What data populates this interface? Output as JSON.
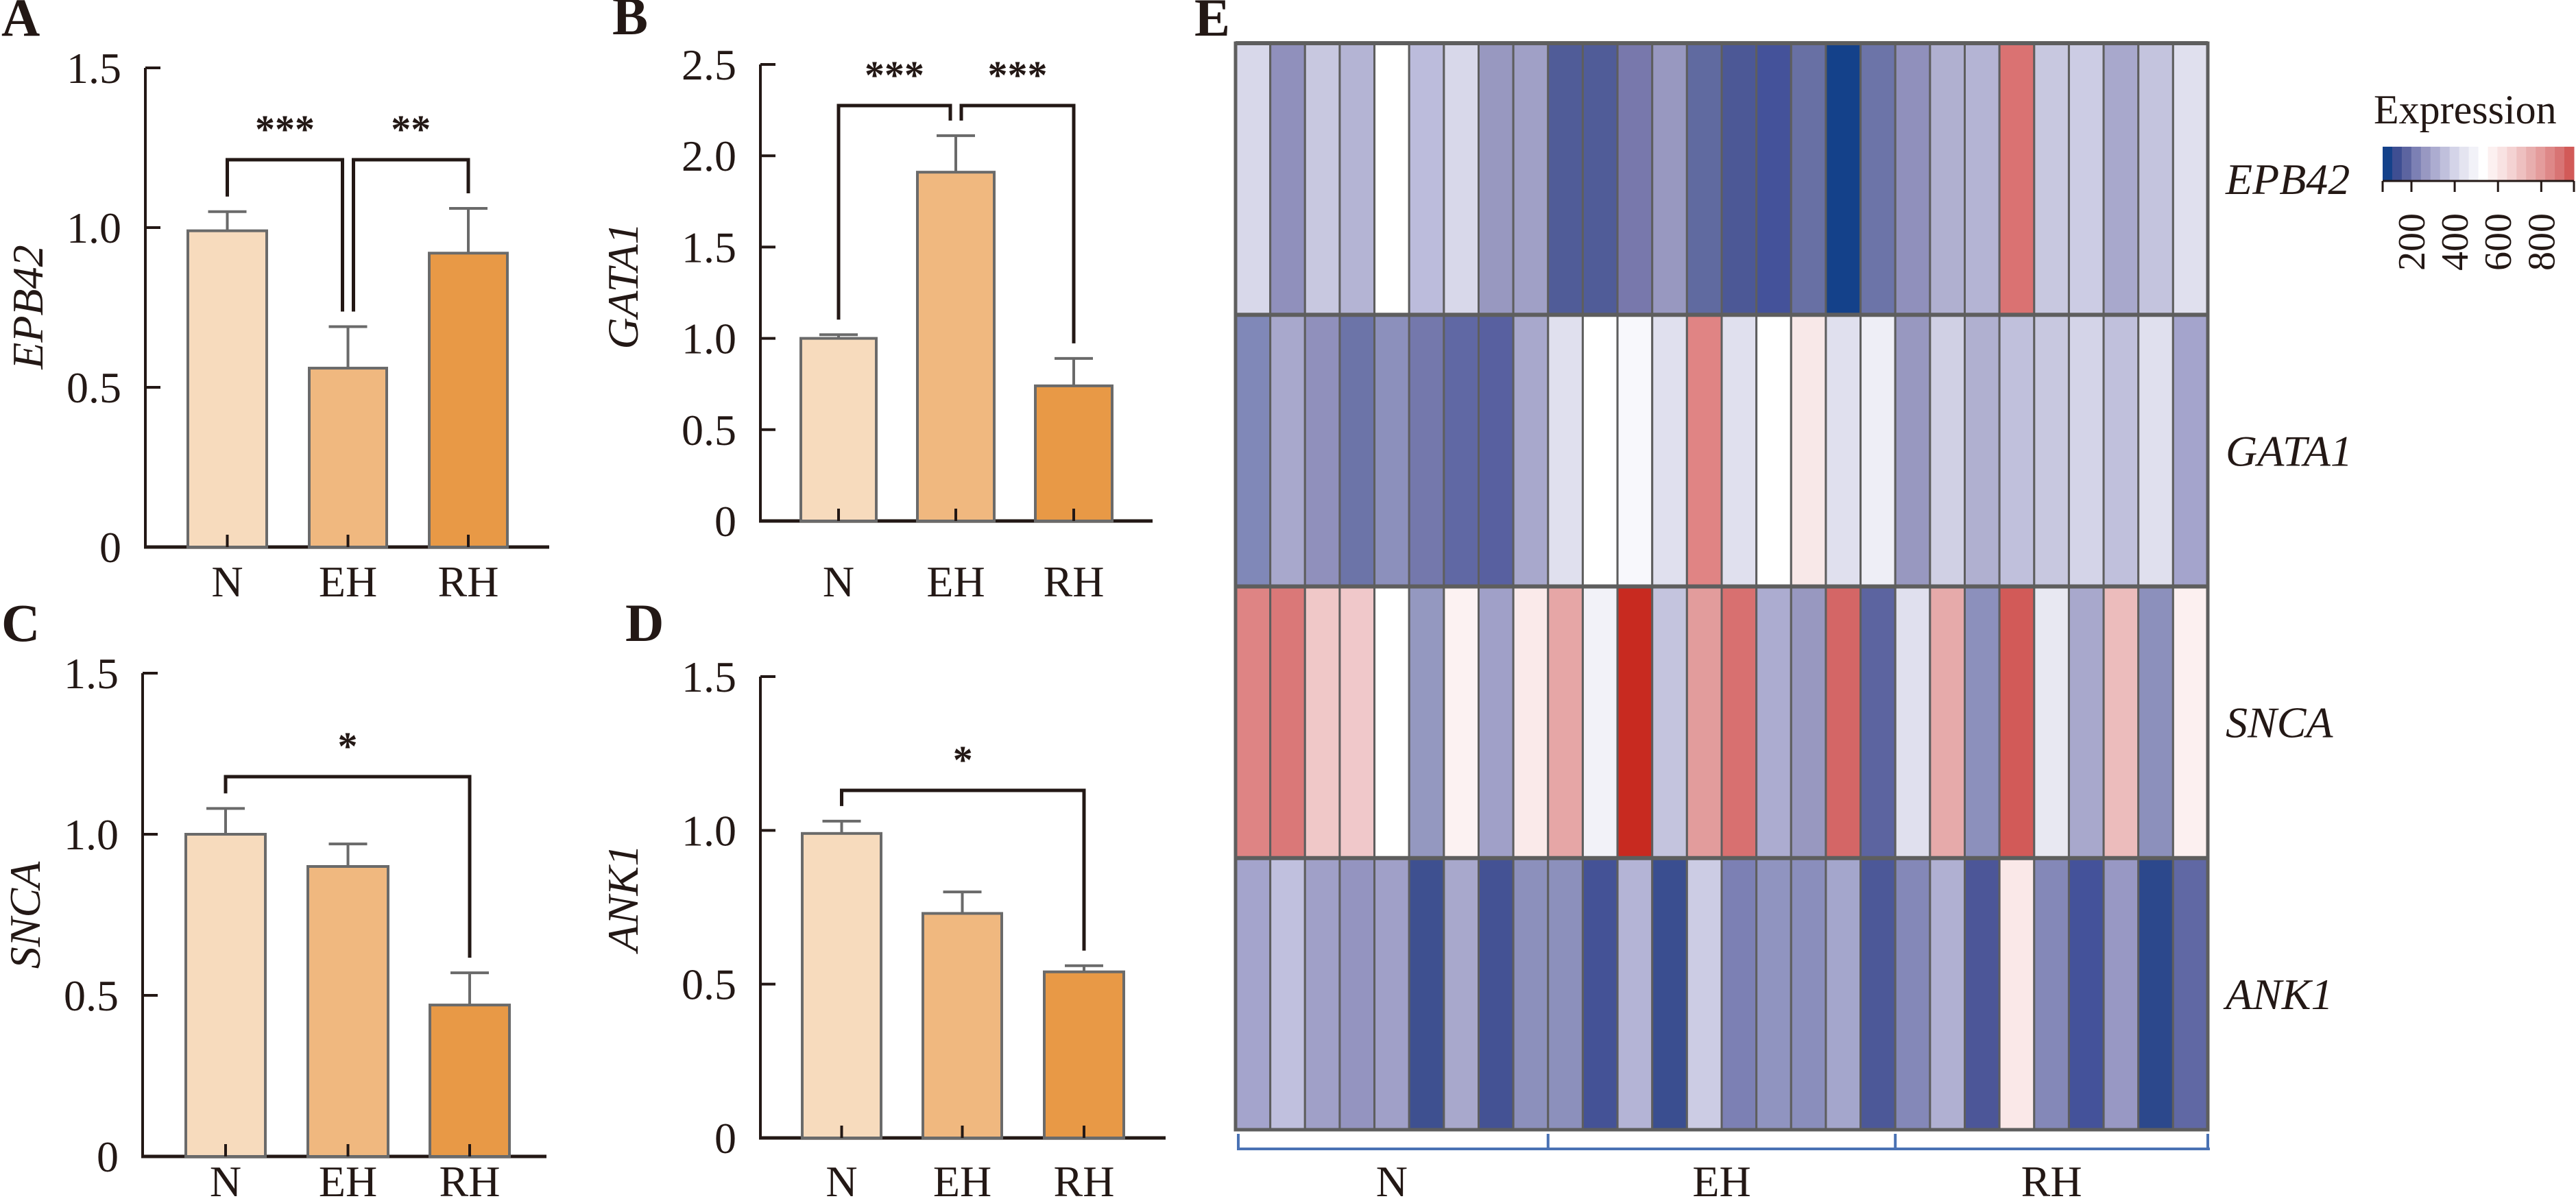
{
  "colors": {
    "bar_N": "#f7dbbd",
    "bar_EH": "#f0b87f",
    "bar_RH": "#e89946",
    "bar_edge": "#6a6a6a",
    "axis": "#231815",
    "heatmap_grid": "#5e5e5e",
    "bracket_blue": "#4a72b4"
  },
  "chart_data": [
    {
      "panel": "A",
      "type": "bar",
      "ylabel": "EPB42",
      "categories": [
        "N",
        "EH",
        "RH"
      ],
      "values": [
        0.99,
        0.56,
        0.92
      ],
      "error_upper": [
        1.05,
        0.69,
        1.06
      ],
      "ylim": [
        0,
        1.5
      ],
      "yticks": [
        "0",
        "0.5",
        "1.0",
        "1.5"
      ],
      "ytick_values": [
        0,
        0.5,
        1.0,
        1.5
      ],
      "significance": [
        {
          "from": "N",
          "to": "EH",
          "label": "***"
        },
        {
          "from": "EH",
          "to": "RH",
          "label": "**"
        }
      ]
    },
    {
      "panel": "B",
      "type": "bar",
      "ylabel": "GATA1",
      "categories": [
        "N",
        "EH",
        "RH"
      ],
      "values": [
        1.0,
        1.91,
        0.74
      ],
      "error_upper": [
        1.02,
        2.11,
        0.89
      ],
      "ylim": [
        0,
        2.5
      ],
      "yticks": [
        "0",
        "0.5",
        "1.0",
        "1.5",
        "2.0",
        "2.5"
      ],
      "ytick_values": [
        0,
        0.5,
        1.0,
        1.5,
        2.0,
        2.5
      ],
      "significance": [
        {
          "from": "N",
          "to": "EH",
          "label": "***"
        },
        {
          "from": "EH",
          "to": "RH",
          "label": "***"
        }
      ]
    },
    {
      "panel": "C",
      "type": "bar",
      "ylabel": "SNCA",
      "categories": [
        "N",
        "EH",
        "RH"
      ],
      "values": [
        1.0,
        0.9,
        0.47
      ],
      "error_upper": [
        1.08,
        0.97,
        0.57
      ],
      "ylim": [
        0,
        1.5
      ],
      "yticks": [
        "0",
        "0.5",
        "1.0",
        "1.5"
      ],
      "ytick_values": [
        0,
        0.5,
        1.0,
        1.5
      ],
      "significance": [
        {
          "from": "N",
          "to": "RH",
          "label": "*"
        }
      ]
    },
    {
      "panel": "D",
      "type": "bar",
      "ylabel": "ANK1",
      "categories": [
        "N",
        "EH",
        "RH"
      ],
      "values": [
        0.99,
        0.73,
        0.54
      ],
      "error_upper": [
        1.03,
        0.8,
        0.56
      ],
      "ylim": [
        0,
        1.5
      ],
      "yticks": [
        "0",
        "0.5",
        "1.0",
        "1.5"
      ],
      "ytick_values": [
        0,
        0.5,
        1.0,
        1.5
      ],
      "significance": [
        {
          "from": "N",
          "to": "RH",
          "label": "*"
        }
      ]
    },
    {
      "panel": "E",
      "type": "heatmap",
      "genes": [
        "EPB42",
        "GATA1",
        "SNCA",
        "ANK1"
      ],
      "groups": [
        {
          "label": "N",
          "n": 9
        },
        {
          "label": "EH",
          "n": 10
        },
        {
          "label": "RH",
          "n": 9
        }
      ],
      "legend": {
        "title": "Expression",
        "ticks": [
          "200",
          "400",
          "600",
          "800"
        ],
        "tick_values": [
          200,
          400,
          600,
          800
        ],
        "range": [
          67,
          951
        ],
        "steps": [
          "#14418a",
          "#3e4e92",
          "#5c64a0",
          "#7c80b4",
          "#9898c2",
          "#acacd0",
          "#c0c0dc",
          "#d4d4e8",
          "#e4e4f0",
          "#f2f2f8",
          "#ffffff",
          "#fcf0f0",
          "#f8e2e2",
          "#f4d2d2",
          "#eec0c0",
          "#e8aeae",
          "#e49c9c",
          "#de8888",
          "#d87474",
          "#d25a58"
        ]
      },
      "cell_colors": [
        [
          "#d8d8ea",
          "#9090bc",
          "#c8c8e0",
          "#b4b4d4",
          "#ffffff",
          "#bcbcdc",
          "#d8d8ea",
          "#9898c0",
          "#a0a0c6",
          "#505c98",
          "#505c98",
          "#7878ac",
          "#9898c0",
          "#606aa0",
          "#4c5896",
          "#44529a",
          "#6870a4",
          "#14418a",
          "#6c74a8",
          "#9090bc",
          "#b0b0d0",
          "#b4b4d4",
          "#da7272",
          "#c8c8e0",
          "#cccce4",
          "#a8a8cc",
          "#c4c4de",
          "#e0e0ee"
        ],
        [
          "#8088b8",
          "#a8a8cc",
          "#9090bc",
          "#6c74a8",
          "#8c90bc",
          "#7478ac",
          "#6068a4",
          "#5860a0",
          "#a8a8cc",
          "#e0e0ee",
          "#ffffff",
          "#f8f8fc",
          "#e0e0ee",
          "#e08484",
          "#e0e0ee",
          "#ffffff",
          "#f8e8e8",
          "#e0e0ee",
          "#eeeef6",
          "#9898c0",
          "#d0d0e4",
          "#b0b0d0",
          "#c0c0dc",
          "#c8c8e0",
          "#d4d4e8",
          "#c0c0dc",
          "#e0e0ee",
          "#a4a4cc"
        ],
        [
          "#de8484",
          "#da7878",
          "#f0c8c8",
          "#f0c8ca",
          "#ffffff",
          "#9498c0",
          "#fcf2f2",
          "#a0a0c8",
          "#faeaea",
          "#e6a6a6",
          "#f2f2f8",
          "#c82a20",
          "#c4c4de",
          "#e29c9c",
          "#d87070",
          "#acacd0",
          "#9898c0",
          "#d46666",
          "#5c64a0",
          "#e0e0ee",
          "#e6aaaa",
          "#8c90bc",
          "#d25a58",
          "#e8e8f2",
          "#a8a8cc",
          "#ecbcbc",
          "#8c90bc",
          "#fcf0f0"
        ],
        [
          "#a4a4cc",
          "#c0c0de",
          "#a0a0c8",
          "#9494c0",
          "#a0a0c8",
          "#3e5090",
          "#a8a8cc",
          "#445294",
          "#8c90bc",
          "#8c90bc",
          "#445296",
          "#b4b4d6",
          "#3a4e90",
          "#cccce4",
          "#7c80b4",
          "#9094c0",
          "#8a8ebc",
          "#a4a6cc",
          "#4c5898",
          "#8488b8",
          "#b0b0d2",
          "#4c5698",
          "#fae8e8",
          "#8488b8",
          "#44529a",
          "#9898c4",
          "#2c488c",
          "#6068a4"
        ]
      ]
    }
  ]
}
